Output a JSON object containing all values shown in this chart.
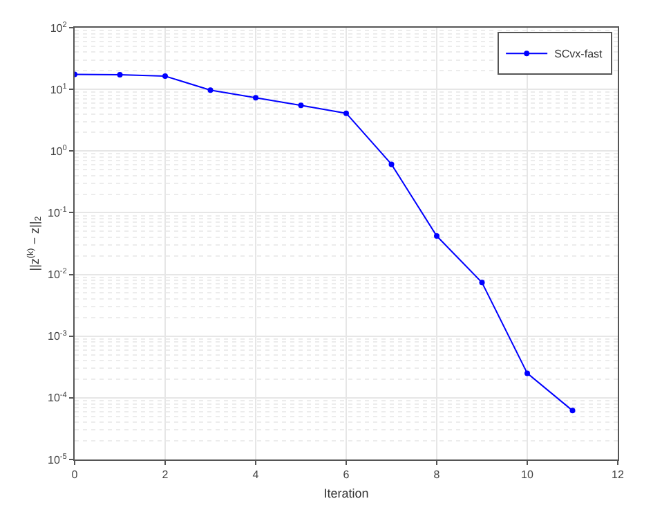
{
  "chart_data": {
    "type": "line",
    "xlabel": "Iteration",
    "ylabel": "||z$^{(k)}$ − z||$_{2}$",
    "x": [
      0,
      1,
      2,
      3,
      4,
      5,
      6,
      7,
      8,
      9,
      10,
      11
    ],
    "series": [
      {
        "name": "SCvx-fast",
        "color": "#0000ff",
        "values": [
          17.5,
          17.3,
          16.4,
          9.7,
          7.3,
          5.5,
          4.1,
          0.61,
          0.042,
          0.0074,
          0.00025,
          6.2e-05
        ]
      }
    ],
    "log": "y",
    "xlim": [
      0,
      12
    ],
    "xticks": [
      0,
      2,
      4,
      6,
      8,
      10,
      12
    ],
    "ylim": [
      1e-05,
      100
    ],
    "yticks": [
      {
        "value": 1e-05,
        "label": "10$^{-5}$"
      },
      {
        "value": 0.0001,
        "label": "10$^{-4}$"
      },
      {
        "value": 0.001,
        "label": "10$^{-3}$"
      },
      {
        "value": 0.01,
        "label": "10$^{-2}$"
      },
      {
        "value": 0.1,
        "label": "10$^{-1}$"
      },
      {
        "value": 1,
        "label": "10$^{0}$"
      },
      {
        "value": 10,
        "label": "10$^{1}$"
      },
      {
        "value": 100,
        "label": "10$^{2}$"
      }
    ],
    "grid": true,
    "legend": "top right",
    "marker": "circle",
    "line_style": "solid"
  }
}
